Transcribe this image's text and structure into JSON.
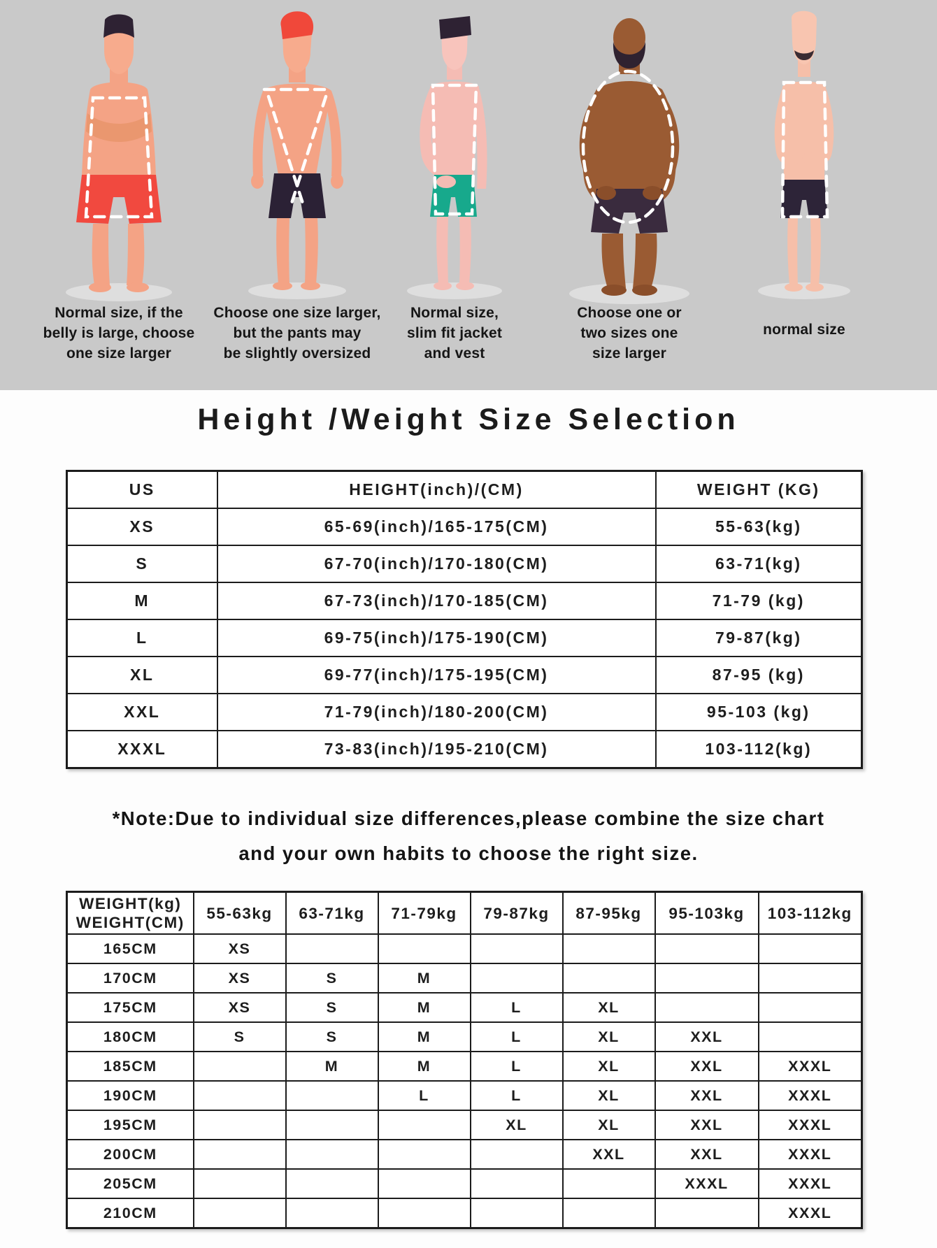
{
  "banner": {
    "background_color": "#c9c9c9",
    "overlay_color": "#ffffff",
    "figures": [
      {
        "name": "stocky-man-red-shorts",
        "skin_color": "#f4a385",
        "shorts_color": "#f1493f",
        "hair_color": "#2e2233",
        "overlay_shape": "dashed-rectangle",
        "caption_lines": [
          "Normal size, if the",
          "belly is large, choose",
          "one size larger"
        ]
      },
      {
        "name": "athletic-man-black-shorts",
        "skin_color": "#f4a385",
        "shorts_color": "#2b2135",
        "hair_color": "#f0483a",
        "overlay_shape": "dashed-v-triangle",
        "caption_lines": [
          "Choose one size larger,",
          "but the pants may",
          "be slightly oversized"
        ]
      },
      {
        "name": "slim-man-teal-shorts",
        "skin_color": "#f5bcb4",
        "shorts_color": "#17a98c",
        "hair_color": "#2e2233",
        "overlay_shape": "dashed-tapered-rectangle",
        "caption_lines": [
          "Normal size,",
          "slim fit jacket",
          "and vest"
        ]
      },
      {
        "name": "large-man-dark-shorts",
        "skin_color": "#9a5b33",
        "shorts_color": "#3a2b3e",
        "hair_color": "bald-with-beard",
        "overlay_shape": "dashed-oval",
        "caption_lines": [
          "Choose one or",
          "two sizes one",
          "size larger"
        ]
      },
      {
        "name": "thin-man-dark-shorts",
        "skin_color": "#f6bfa9",
        "shorts_color": "#2d2438",
        "hair_color": "bald-with-mustache",
        "overlay_shape": "dashed-rectangle",
        "caption_lines": [
          "normal size"
        ]
      }
    ]
  },
  "title": "Height /Weight Size Selection",
  "size_table": {
    "rows": [
      [
        "US",
        "HEIGHT(inch)/(CM)",
        "WEIGHT (KG)"
      ],
      [
        "XS",
        "65-69(inch)/165-175(CM)",
        "55-63(kg)"
      ],
      [
        "S",
        "67-70(inch)/170-180(CM)",
        "63-71(kg)"
      ],
      [
        "M",
        "67-73(inch)/170-185(CM)",
        "71-79 (kg)"
      ],
      [
        "L",
        "69-75(inch)/175-190(CM)",
        "79-87(kg)"
      ],
      [
        "XL",
        "69-77(inch)/175-195(CM)",
        "87-95 (kg)"
      ],
      [
        "XXL",
        "71-79(inch)/180-200(CM)",
        "95-103 (kg)"
      ],
      [
        "XXXL",
        "73-83(inch)/195-210(CM)",
        "103-112(kg)"
      ]
    ]
  },
  "note_lines": [
    "*Note:Due to individual size differences,please combine the size chart",
    "and your own habits to choose the right size."
  ],
  "matrix_table": {
    "rows": [
      [
        "WEIGHT(kg)\nWEIGHT(CM)",
        "55-63kg",
        "63-71kg",
        "71-79kg",
        "79-87kg",
        "87-95kg",
        "95-103kg",
        "103-112kg"
      ],
      [
        "165CM",
        "XS",
        "",
        "",
        "",
        "",
        "",
        ""
      ],
      [
        "170CM",
        "XS",
        "S",
        "M",
        "",
        "",
        "",
        ""
      ],
      [
        "175CM",
        "XS",
        "S",
        "M",
        "L",
        "XL",
        "",
        ""
      ],
      [
        "180CM",
        "S",
        "S",
        "M",
        "L",
        "XL",
        "XXL",
        ""
      ],
      [
        "185CM",
        "",
        "M",
        "M",
        "L",
        "XL",
        "XXL",
        "XXXL"
      ],
      [
        "190CM",
        "",
        "",
        "L",
        "L",
        "XL",
        "XXL",
        "XXXL"
      ],
      [
        "195CM",
        "",
        "",
        "",
        "XL",
        "XL",
        "XXL",
        "XXXL"
      ],
      [
        "200CM",
        "",
        "",
        "",
        "",
        "XXL",
        "XXL",
        "XXXL"
      ],
      [
        "205CM",
        "",
        "",
        "",
        "",
        "",
        "XXXL",
        "XXXL"
      ],
      [
        "210CM",
        "",
        "",
        "",
        "",
        "",
        "",
        "XXXL"
      ]
    ]
  }
}
